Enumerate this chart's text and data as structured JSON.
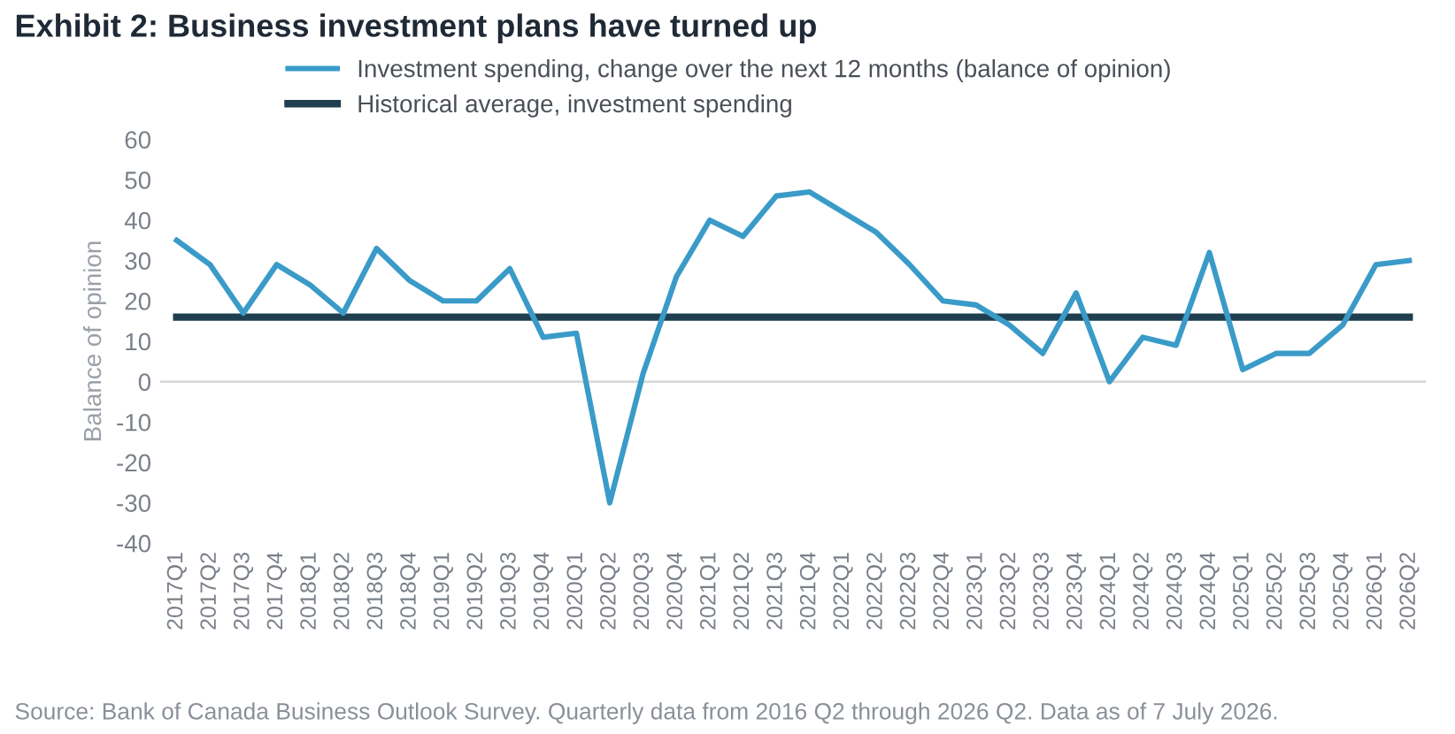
{
  "chart_data": {
    "type": "line",
    "title": "Exhibit 2: Business investment plans have turned up",
    "ylabel": "Balance of opinion",
    "categories": [
      "2017Q1",
      "2017Q2",
      "2017Q3",
      "2017Q4",
      "2018Q1",
      "2018Q2",
      "2018Q3",
      "2018Q4",
      "2019Q1",
      "2019Q2",
      "2019Q3",
      "2019Q4",
      "2020Q1",
      "2020Q2",
      "2020Q3",
      "2020Q4",
      "2021Q1",
      "2021Q2",
      "2021Q3",
      "2021Q4",
      "2022Q1",
      "2022Q2",
      "2022Q3",
      "2022Q4",
      "2023Q1",
      "2023Q2",
      "2023Q3",
      "2023Q4",
      "2024Q1",
      "2024Q2",
      "2024Q3",
      "2024Q4",
      "2025Q1",
      "2025Q2",
      "2025Q3",
      "2025Q4",
      "2026Q1",
      "2026Q2"
    ],
    "series": [
      {
        "name": "Investment spending, change over the next 12 months (balance of opinion)",
        "color": "#3a9bc8",
        "values": [
          35,
          29,
          17,
          29,
          24,
          17,
          33,
          25,
          20,
          20,
          28,
          11,
          12,
          -30,
          2,
          26,
          40,
          36,
          46,
          47,
          42,
          37,
          29,
          20,
          19,
          14,
          7,
          22,
          0,
          11,
          9,
          32,
          3,
          7,
          7,
          14,
          29,
          30
        ]
      },
      {
        "name": "Historical average, investment spending",
        "color": "#1f3f50",
        "values": [
          16,
          16,
          16,
          16,
          16,
          16,
          16,
          16,
          16,
          16,
          16,
          16,
          16,
          16,
          16,
          16,
          16,
          16,
          16,
          16,
          16,
          16,
          16,
          16,
          16,
          16,
          16,
          16,
          16,
          16,
          16,
          16,
          16,
          16,
          16,
          16,
          16,
          16
        ]
      }
    ],
    "ylim": [
      -40,
      60
    ],
    "yticks": [
      -40,
      -30,
      -20,
      -10,
      0,
      10,
      20,
      30,
      40,
      50,
      60
    ],
    "ref_lines": [
      {
        "axis": "y",
        "value": 0,
        "color": "#d9d9d9"
      }
    ],
    "legend": "top",
    "marker": "none",
    "line_style": "solid",
    "annotations": [
      "Source: Bank of Canada Business Outlook Survey. Quarterly data from 2016 Q2 through 2026 Q2. Data as of 7 July 2026."
    ]
  }
}
